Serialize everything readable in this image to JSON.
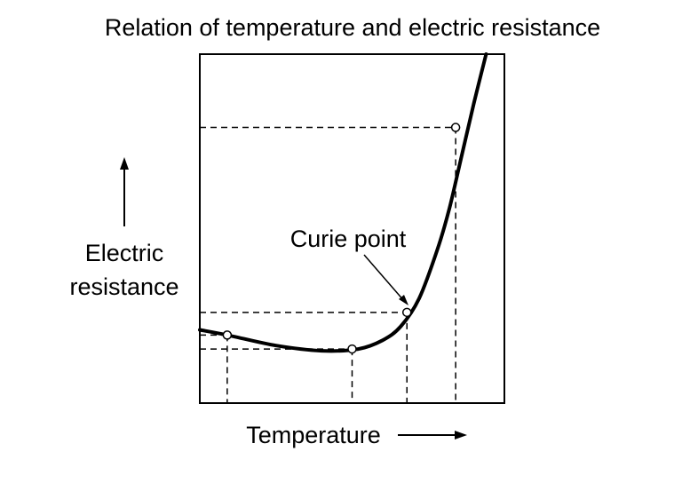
{
  "chart_data": {
    "type": "line",
    "title": "Relation of temperature and electric resistance",
    "xlabel": "Temperature",
    "ylabel_lines": [
      "Electric",
      "resistance"
    ],
    "xlim": [
      0,
      100
    ],
    "ylim": [
      0,
      100
    ],
    "grid": false,
    "legend": "none",
    "series": [
      {
        "x": [
          0,
          9,
          25,
          40,
          52,
          60,
          66,
          72,
          78,
          82,
          86,
          90,
          94
        ],
        "y": [
          21,
          19.5,
          16.5,
          15,
          15.5,
          18,
          22,
          30,
          44,
          56,
          71,
          86,
          100
        ]
      }
    ],
    "marked_points": [
      {
        "x": 9,
        "y": 19.5
      },
      {
        "x": 50,
        "y": 15.5
      },
      {
        "x": 68,
        "y": 26
      },
      {
        "x": 84,
        "y": 79
      }
    ],
    "annotation": {
      "text": "Curie point",
      "x": 68,
      "y": 26
    },
    "colors": {
      "line": "#000000",
      "axis": "#000000",
      "background": "#ffffff"
    }
  }
}
